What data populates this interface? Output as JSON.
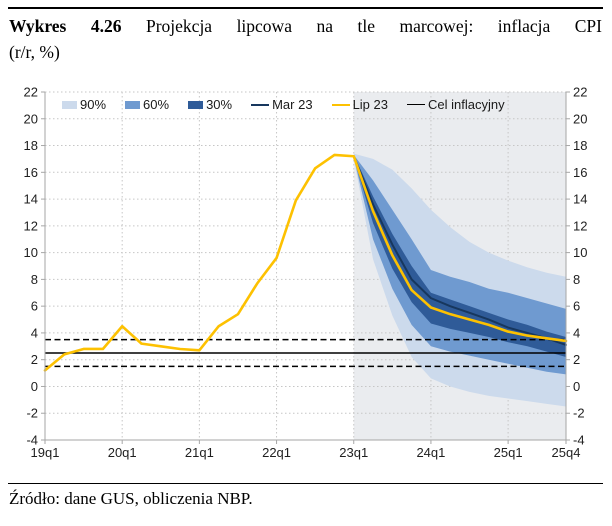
{
  "title": {
    "label": "Wykres 4.26",
    "rest": "Projekcja lipcowa na tle marcowej: inflacja CPI",
    "line2": "(r/r, %)"
  },
  "source": "Źródło: dane GUS, obliczenia NBP.",
  "legend": {
    "band90": "90%",
    "band60": "60%",
    "band30": "30%",
    "mar": "Mar 23",
    "lip": "Lip 23",
    "target": "Cel inflacyjny"
  },
  "chart_data": {
    "type": "line",
    "title": "Projekcja lipcowa na tle marcowej: inflacja CPI (r/r, %)",
    "categories": [
      "19q1",
      "19q2",
      "19q3",
      "19q4",
      "20q1",
      "20q2",
      "20q3",
      "20q4",
      "21q1",
      "21q2",
      "21q3",
      "21q4",
      "22q1",
      "22q2",
      "22q3",
      "22q4",
      "23q1",
      "23q2",
      "23q3",
      "23q4",
      "24q1",
      "24q2",
      "24q3",
      "24q4",
      "25q1",
      "25q2",
      "25q3",
      "25q4"
    ],
    "x_tick_labels": [
      "19q1",
      "20q1",
      "21q1",
      "22q1",
      "23q1",
      "24q1",
      "25q1",
      "25q4"
    ],
    "x_tick_indices": [
      0,
      4,
      8,
      12,
      16,
      20,
      24,
      27
    ],
    "ylim": [
      -4,
      22
    ],
    "y_tick_step": 2,
    "grid": true,
    "legend_position": "top",
    "projection_start_index": 16,
    "projection_bg": "#eaecef",
    "series": [
      {
        "name": "Mar 23",
        "color": "#17375e",
        "start_index": 16,
        "values": [
          17.2,
          13.6,
          10.6,
          8.0,
          6.6,
          6.0,
          5.5,
          5.0,
          4.4,
          4.0,
          3.6,
          3.1
        ]
      },
      {
        "name": "Lip 23",
        "color": "#fdc101",
        "start_index": 0,
        "values": [
          1.2,
          2.4,
          2.8,
          2.8,
          4.5,
          3.2,
          3.0,
          2.8,
          2.7,
          4.5,
          5.4,
          7.7,
          9.6,
          13.9,
          16.3,
          17.3,
          17.2,
          13.1,
          9.8,
          7.2,
          5.9,
          5.4,
          5.0,
          4.6,
          4.1,
          3.8,
          3.6,
          3.4
        ]
      }
    ],
    "bands": [
      {
        "name": "90%",
        "color": "#ccdaec",
        "start_index": 16,
        "top": [
          17.4,
          17.0,
          16.2,
          14.8,
          13.2,
          11.9,
          10.8,
          10.0,
          9.4,
          8.9,
          8.5,
          8.2
        ],
        "bottom": [
          17.0,
          9.5,
          5.3,
          2.2,
          0.6,
          0.0,
          -0.4,
          -0.7,
          -0.9,
          -1.1,
          -1.3,
          -1.5
        ]
      },
      {
        "name": "60%",
        "color": "#6f9ad0",
        "start_index": 16,
        "top": [
          17.3,
          15.4,
          13.2,
          11.0,
          8.7,
          8.2,
          7.8,
          7.3,
          7.0,
          6.6,
          6.2,
          5.8
        ],
        "bottom": [
          17.1,
          11.0,
          7.3,
          4.6,
          3.0,
          2.6,
          2.3,
          2.0,
          1.7,
          1.4,
          1.1,
          0.9
        ]
      },
      {
        "name": "30%",
        "color": "#2f5b98",
        "start_index": 16,
        "top": [
          17.3,
          14.2,
          11.4,
          9.0,
          7.0,
          6.5,
          6.0,
          5.5,
          5.0,
          4.6,
          4.1,
          3.7
        ],
        "bottom": [
          17.1,
          12.2,
          8.8,
          6.3,
          4.7,
          4.3,
          4.0,
          3.7,
          3.3,
          3.0,
          2.6,
          2.2
        ]
      }
    ],
    "reference_lines": [
      {
        "name": "target-upper-band",
        "value": 3.5,
        "style": "dashed",
        "color": "#000000"
      },
      {
        "name": "inflation-target",
        "value": 2.5,
        "style": "solid",
        "color": "#000000"
      },
      {
        "name": "target-lower-band",
        "value": 1.5,
        "style": "dashed",
        "color": "#000000"
      }
    ],
    "colors": {
      "grid": "#c6c6c6",
      "frame": "#a6a6a6",
      "axis_text": "#1f1f1f"
    }
  }
}
